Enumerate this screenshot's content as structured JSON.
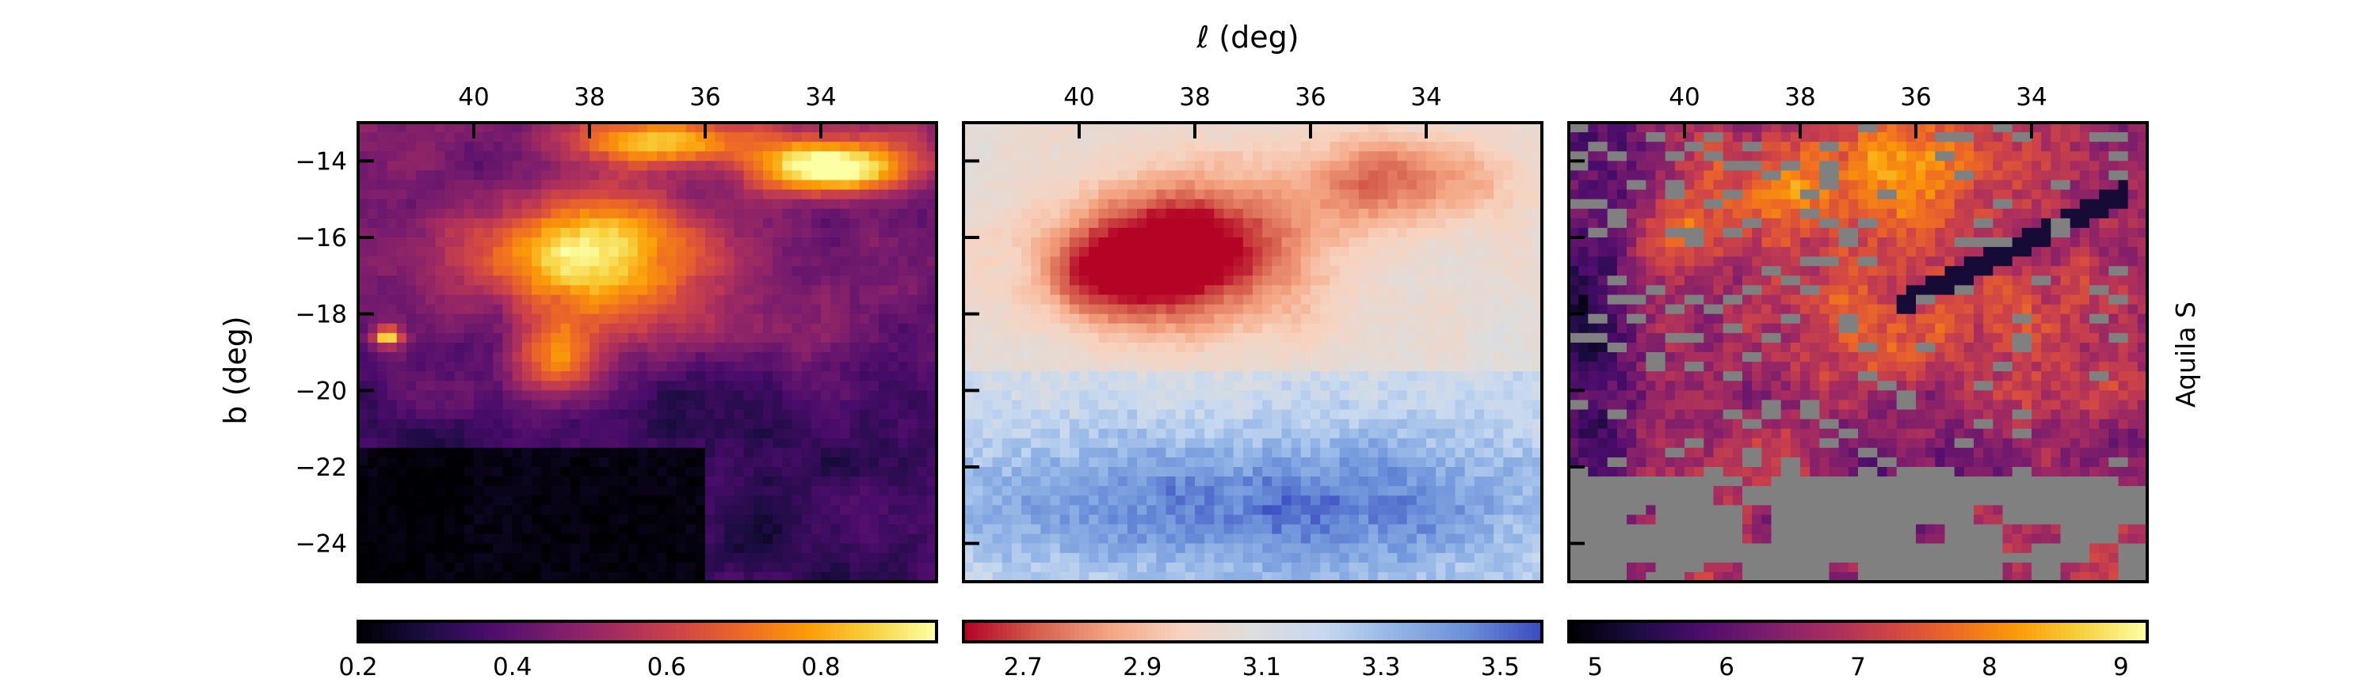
{
  "figure": {
    "top_label": "ℓ (deg)",
    "left_label": "b (deg)",
    "right_label": "Aquila S"
  },
  "chart_data": [
    {
      "type": "heatmap",
      "xlabel": "ℓ (deg)",
      "ylabel": "b (deg)",
      "xlim": [
        42,
        32
      ],
      "ylim": [
        -25,
        -13
      ],
      "xticks": [
        40,
        38,
        36,
        34
      ],
      "yticks": [
        -14,
        -16,
        -18,
        -20,
        -22,
        -24
      ],
      "colormap": "inferno",
      "colorbar": {
        "min": 0.2,
        "max": 0.95,
        "ticks": [
          "0.2",
          "0.4",
          "0.6",
          "0.8"
        ]
      },
      "regions": [
        {
          "l": 38,
          "b": -16.5,
          "rl": 2.0,
          "rb": 1.6,
          "amp": 0.55
        },
        {
          "l": 38.6,
          "b": -19.2,
          "rl": 0.9,
          "rb": 1.1,
          "amp": 0.35
        },
        {
          "l": 33.8,
          "b": -14.2,
          "rl": 1.3,
          "rb": 0.7,
          "amp": 0.6
        },
        {
          "l": 36.5,
          "b": -13.5,
          "rl": 1.5,
          "rb": 0.6,
          "amp": 0.4
        },
        {
          "l": 35.5,
          "b": -18.5,
          "rl": 1.8,
          "rb": 1.0,
          "amp": 0.12
        },
        {
          "l": 41.5,
          "b": -18.6,
          "rl": 0.25,
          "rb": 0.25,
          "amp": 0.5
        }
      ]
    },
    {
      "type": "heatmap",
      "xlabel": "ℓ (deg)",
      "xlim": [
        42,
        32
      ],
      "ylim": [
        -25,
        -13
      ],
      "xticks": [
        40,
        38,
        36,
        34
      ],
      "yticks": [
        -14,
        -16,
        -18,
        -20,
        -22,
        -24
      ],
      "colormap": "coolwarm_reversed",
      "colorbar": {
        "min": 2.6,
        "max": 3.57,
        "ticks": [
          "2.7",
          "2.9",
          "3.1",
          "3.3",
          "3.5"
        ]
      },
      "regions": [
        {
          "l": 38.2,
          "b": -16.4,
          "rl": 2.2,
          "rb": 1.8,
          "amp": -0.55
        },
        {
          "l": 39.5,
          "b": -17.0,
          "rl": 1.0,
          "rb": 1.0,
          "amp": -0.25
        },
        {
          "l": 34.5,
          "b": -14.5,
          "rl": 1.8,
          "rb": 1.2,
          "amp": -0.3
        },
        {
          "l": 37,
          "b": -23.0,
          "rl": 5.5,
          "rb": 2.0,
          "amp": 0.35
        }
      ]
    },
    {
      "type": "heatmap",
      "xlabel": "ℓ (deg)",
      "xlim": [
        42,
        32
      ],
      "ylim": [
        -25,
        -13
      ],
      "xticks": [
        40,
        38,
        36,
        34
      ],
      "yticks": [
        -14,
        -16,
        -18,
        -20,
        -22,
        -24
      ],
      "colormap": "inferno",
      "colorbar": {
        "min": 4.8,
        "max": 9.2,
        "ticks": [
          "5",
          "6",
          "7",
          "8",
          "9"
        ]
      },
      "mask_color": "#808080",
      "regions": [
        {
          "l": 37,
          "b": -14.5,
          "rl": 2.5,
          "rb": 1.5,
          "amp": 1.6
        },
        {
          "l": 40.2,
          "b": -15.8,
          "rl": 0.8,
          "rb": 0.8,
          "amp": 1.2
        },
        {
          "l": 36,
          "b": -18.5,
          "rl": 3.0,
          "rb": 2.0,
          "amp": 0.6
        },
        {
          "l": 41.5,
          "b": -20,
          "rl": 0.8,
          "rb": 5.0,
          "amp": -1.2
        }
      ]
    }
  ]
}
